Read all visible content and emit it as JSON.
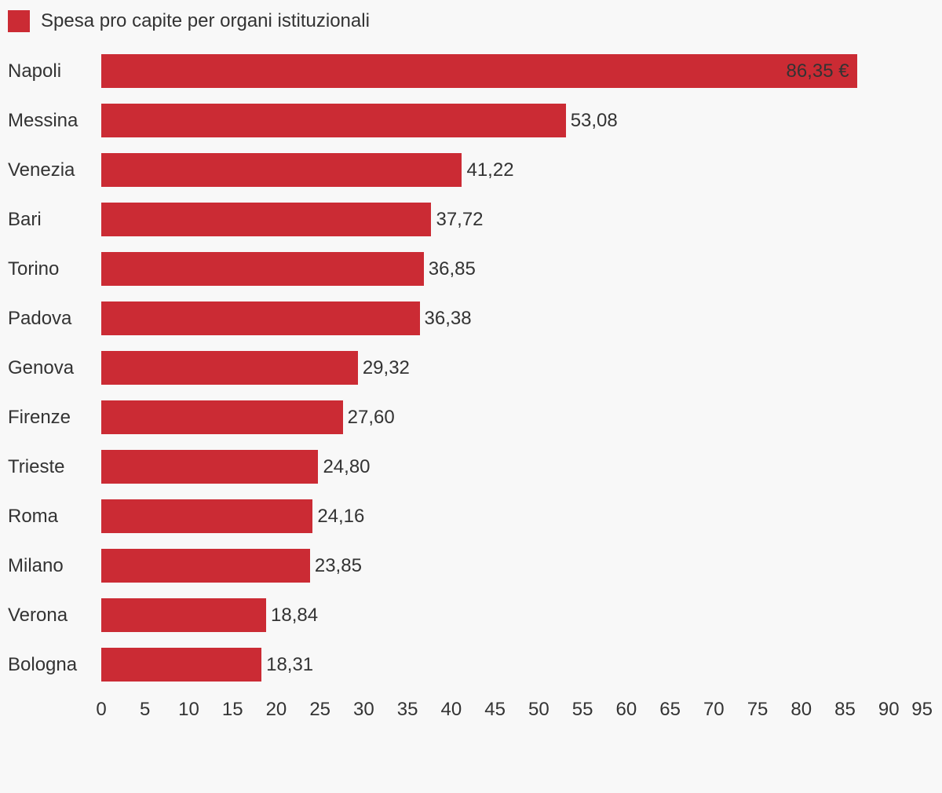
{
  "background_color": "#F8F8F8",
  "text_color": "#333333",
  "legend": {
    "swatch_color": "#CB2B34",
    "title": "Spesa pro capite per organi istituzionali"
  },
  "chart_data": {
    "type": "bar",
    "orientation": "horizontal",
    "title": "Spesa pro capite per organi istituzionali",
    "categories": [
      "Napoli",
      "Messina",
      "Venezia",
      "Bari",
      "Torino",
      "Padova",
      "Genova",
      "Firenze",
      "Trieste",
      "Roma",
      "Milano",
      "Verona",
      "Bologna"
    ],
    "values": [
      86.35,
      53.08,
      41.22,
      37.72,
      36.85,
      36.38,
      29.32,
      27.6,
      24.8,
      24.16,
      23.85,
      18.84,
      18.31
    ],
    "value_labels": [
      "86,35 €",
      "53,08",
      "41,22",
      "37,72",
      "36,85",
      "36,38",
      "29,32",
      "27,60",
      "24,80",
      "24,16",
      "23,85",
      "18,84",
      "18,31"
    ],
    "label_inside": [
      true,
      false,
      false,
      false,
      false,
      false,
      false,
      false,
      false,
      false,
      false,
      false,
      false
    ],
    "unit": "€",
    "xlim": [
      0,
      95
    ],
    "x_ticks": [
      0,
      5,
      10,
      15,
      20,
      25,
      30,
      35,
      40,
      45,
      50,
      55,
      60,
      65,
      70,
      75,
      80,
      85,
      90,
      95
    ],
    "bar_color": "#CB2B34",
    "grid": false,
    "legend_position": "top-left"
  }
}
